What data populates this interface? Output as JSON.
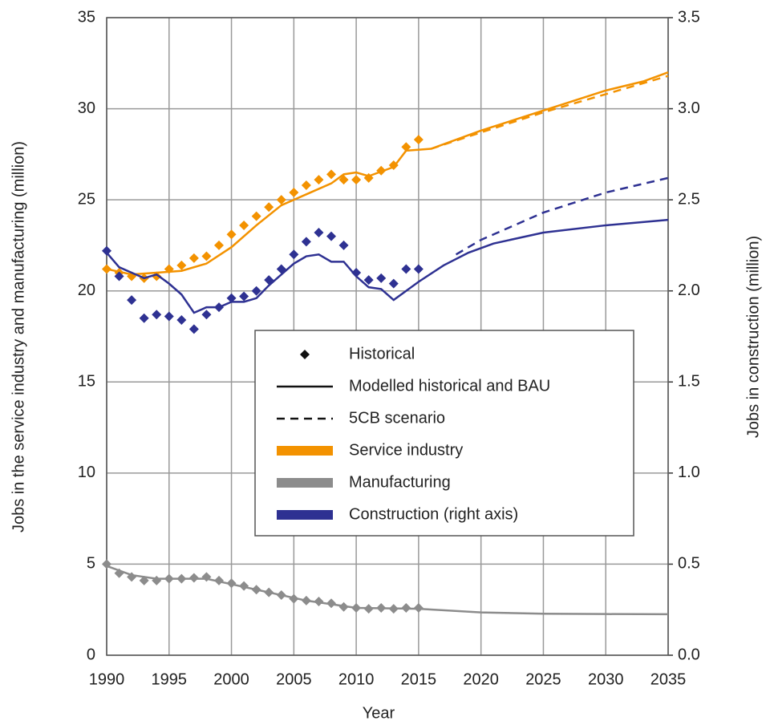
{
  "chart_data": {
    "type": "line",
    "xlabel": "Year",
    "ylabel": "Jobs in the service industry and manufacturing (million)",
    "y2label": "Jobs in construction (million)",
    "xlim": [
      1990,
      2035
    ],
    "xticks": [
      1990,
      1995,
      2000,
      2005,
      2010,
      2015,
      2020,
      2025,
      2030,
      2035
    ],
    "ylim": [
      0,
      35
    ],
    "yticks": [
      0,
      5,
      10,
      15,
      20,
      25,
      30,
      35
    ],
    "y2lim": [
      0,
      3.5
    ],
    "y2ticks": [
      {
        "value": 0,
        "label": "0.0"
      },
      0.5,
      {
        "value": 1,
        "label": "1.0"
      },
      1.5,
      {
        "value": 2,
        "label": "2.0"
      },
      2.5,
      {
        "value": 3,
        "label": "3.0"
      },
      3.5
    ],
    "grid": true,
    "legend_position": "center",
    "legend": [
      {
        "label": "Historical",
        "kind": "marker"
      },
      {
        "label": "Modelled historical and BAU",
        "kind": "solid"
      },
      {
        "label": "5CB scenario",
        "kind": "dashed"
      },
      {
        "label": "Service industry",
        "color": "#f39200"
      },
      {
        "label": "Manufacturing",
        "color": "#8c8c8c"
      },
      {
        "label": "Construction (right axis)",
        "color": "#2e3192"
      }
    ],
    "series": [
      {
        "name": "Service industry",
        "style": "marker",
        "color": "#f39200",
        "x": [
          1990,
          1991,
          1992,
          1993,
          1994,
          1995,
          1996,
          1997,
          1998,
          1999,
          2000,
          2001,
          2002,
          2003,
          2004,
          2005,
          2006,
          2007,
          2008,
          2009,
          2010,
          2011,
          2012,
          2013,
          2014,
          2015
        ],
        "values": [
          21.2,
          21.0,
          20.8,
          20.7,
          20.8,
          21.2,
          21.4,
          21.8,
          21.9,
          22.5,
          23.1,
          23.6,
          24.1,
          24.6,
          25.0,
          25.4,
          25.8,
          26.1,
          26.4,
          26.1,
          26.1,
          26.2,
          26.6,
          26.9,
          27.9,
          28.3
        ]
      },
      {
        "name": "Service industry",
        "style": "solid",
        "color": "#f39200",
        "x": [
          1990,
          1992,
          1994,
          1996,
          1998,
          2000,
          2002,
          2004,
          2006,
          2008,
          2009,
          2010,
          2011,
          2013,
          2014,
          2016,
          2018,
          2020,
          2025,
          2030,
          2033,
          2035
        ],
        "values": [
          21.2,
          20.9,
          21.0,
          21.1,
          21.5,
          22.4,
          23.6,
          24.7,
          25.3,
          25.9,
          26.4,
          26.5,
          26.3,
          26.8,
          27.7,
          27.8,
          28.3,
          28.8,
          29.9,
          31.0,
          31.5,
          32.0
        ]
      },
      {
        "name": "Service industry",
        "style": "dashed",
        "color": "#f39200",
        "x": [
          2016,
          2020,
          2025,
          2030,
          2035
        ],
        "values": [
          27.8,
          28.7,
          29.8,
          30.8,
          31.8
        ]
      },
      {
        "name": "Manufacturing",
        "style": "marker",
        "color": "#8c8c8c",
        "x": [
          1990,
          1991,
          1992,
          1993,
          1994,
          1995,
          1996,
          1997,
          1998,
          1999,
          2000,
          2001,
          2002,
          2003,
          2004,
          2005,
          2006,
          2007,
          2008,
          2009,
          2010,
          2011,
          2012,
          2013,
          2014,
          2015
        ],
        "values": [
          5.0,
          4.5,
          4.3,
          4.1,
          4.1,
          4.2,
          4.2,
          4.25,
          4.3,
          4.1,
          3.95,
          3.8,
          3.6,
          3.45,
          3.3,
          3.1,
          3.0,
          2.95,
          2.85,
          2.65,
          2.6,
          2.55,
          2.6,
          2.55,
          2.6,
          2.6
        ]
      },
      {
        "name": "Manufacturing",
        "style": "solid",
        "color": "#8c8c8c",
        "x": [
          1990,
          1992,
          1994,
          1996,
          1998,
          2000,
          2002,
          2004,
          2006,
          2008,
          2010,
          2015,
          2020,
          2025,
          2030,
          2035
        ],
        "values": [
          4.9,
          4.4,
          4.2,
          4.2,
          4.2,
          3.9,
          3.6,
          3.3,
          3.0,
          2.8,
          2.6,
          2.55,
          2.35,
          2.28,
          2.26,
          2.25
        ]
      },
      {
        "name": "Construction (right axis)",
        "style": "marker",
        "color": "#2e3192",
        "axis": "y2",
        "x": [
          1990,
          1991,
          1992,
          1993,
          1994,
          1995,
          1996,
          1997,
          1998,
          1999,
          2000,
          2001,
          2002,
          2003,
          2004,
          2005,
          2006,
          2007,
          2008,
          2009,
          2010,
          2011,
          2012,
          2013,
          2014,
          2015
        ],
        "values": [
          2.22,
          2.08,
          1.95,
          1.85,
          1.87,
          1.86,
          1.84,
          1.79,
          1.87,
          1.91,
          1.96,
          1.97,
          2.0,
          2.06,
          2.12,
          2.2,
          2.27,
          2.32,
          2.3,
          2.25,
          2.1,
          2.06,
          2.07,
          2.04,
          2.12,
          2.12
        ]
      },
      {
        "name": "Construction (right axis)",
        "style": "solid",
        "color": "#2e3192",
        "axis": "y2",
        "x": [
          1990,
          1991,
          1992,
          1993,
          1994,
          1995,
          1996,
          1997,
          1998,
          1999,
          2000,
          2001,
          2002,
          2003,
          2004,
          2005,
          2006,
          2007,
          2008,
          2009,
          2010,
          2011,
          2012,
          2013,
          2014,
          2015,
          2017,
          2019,
          2021,
          2025,
          2030,
          2035
        ],
        "values": [
          2.21,
          2.13,
          2.1,
          2.07,
          2.09,
          2.04,
          1.98,
          1.88,
          1.91,
          1.91,
          1.94,
          1.94,
          1.96,
          2.03,
          2.09,
          2.15,
          2.19,
          2.2,
          2.16,
          2.16,
          2.08,
          2.02,
          2.01,
          1.95,
          2.0,
          2.05,
          2.14,
          2.21,
          2.26,
          2.32,
          2.36,
          2.39
        ]
      },
      {
        "name": "Construction (right axis)",
        "style": "dashed",
        "color": "#2e3192",
        "axis": "y2",
        "x": [
          2018,
          2020,
          2025,
          2030,
          2035
        ],
        "values": [
          2.2,
          2.28,
          2.43,
          2.54,
          2.62
        ]
      }
    ]
  }
}
